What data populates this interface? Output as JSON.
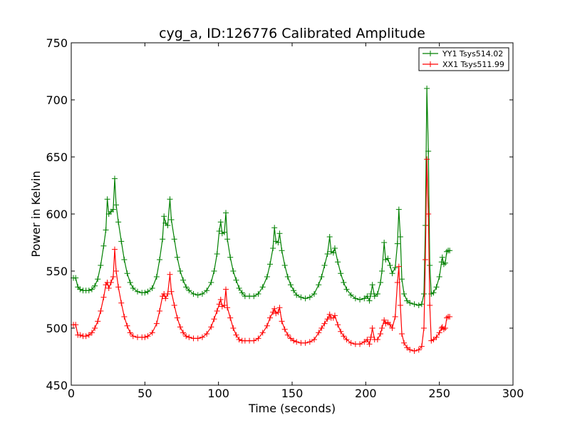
{
  "chart_data": {
    "type": "line",
    "title": "cyg_a, ID:126776 Calibrated Amplitude",
    "xlabel": "Time (seconds)",
    "ylabel": "Power in Kelvin",
    "xlim": [
      0,
      300
    ],
    "ylim": [
      450,
      750
    ],
    "xticks": [
      0,
      50,
      100,
      150,
      200,
      250,
      300
    ],
    "yticks": [
      450,
      500,
      550,
      600,
      650,
      700,
      750
    ],
    "grid": false,
    "legend_position": "top-right",
    "marker": "+",
    "series": [
      {
        "name": "YY1 Tsys514.02",
        "color": "#008000",
        "points": [
          [
            1.5,
            544
          ],
          [
            3.0,
            544
          ],
          [
            4.5,
            536
          ],
          [
            6.0,
            534
          ],
          [
            8.0,
            533
          ],
          [
            10.0,
            533
          ],
          [
            12.0,
            533
          ],
          [
            14.0,
            534
          ],
          [
            16.0,
            537
          ],
          [
            18.0,
            543
          ],
          [
            20.0,
            555
          ],
          [
            22.0,
            572
          ],
          [
            23.5,
            586
          ],
          [
            24.5,
            613
          ],
          [
            25.5,
            600
          ],
          [
            27.0,
            602
          ],
          [
            28.5,
            604
          ],
          [
            29.5,
            631
          ],
          [
            30.5,
            608
          ],
          [
            32.0,
            593
          ],
          [
            34.0,
            576
          ],
          [
            36.0,
            560
          ],
          [
            38.0,
            548
          ],
          [
            40.0,
            540
          ],
          [
            42.0,
            535
          ],
          [
            45.0,
            532
          ],
          [
            48.0,
            531
          ],
          [
            50.0,
            531
          ],
          [
            52.0,
            532
          ],
          [
            55.0,
            535
          ],
          [
            58.0,
            545
          ],
          [
            60.0,
            560
          ],
          [
            62.0,
            578
          ],
          [
            63.0,
            598
          ],
          [
            64.0,
            592
          ],
          [
            65.5,
            590
          ],
          [
            67.0,
            613
          ],
          [
            68.0,
            595
          ],
          [
            70.0,
            578
          ],
          [
            72.0,
            562
          ],
          [
            74.0,
            550
          ],
          [
            76.0,
            542
          ],
          [
            78.0,
            536
          ],
          [
            80.0,
            533
          ],
          [
            83.0,
            530
          ],
          [
            86.0,
            529
          ],
          [
            89.0,
            530
          ],
          [
            92.0,
            533
          ],
          [
            95.0,
            540
          ],
          [
            97.0,
            550
          ],
          [
            99.0,
            565
          ],
          [
            100.5,
            585
          ],
          [
            101.5,
            593
          ],
          [
            102.5,
            583
          ],
          [
            104.0,
            584
          ],
          [
            105.0,
            601
          ],
          [
            106.0,
            578
          ],
          [
            108.0,
            562
          ],
          [
            110.0,
            550
          ],
          [
            112.0,
            542
          ],
          [
            114.0,
            535
          ],
          [
            116.0,
            531
          ],
          [
            118.0,
            528
          ],
          [
            121.0,
            528
          ],
          [
            124.0,
            528
          ],
          [
            127.0,
            530
          ],
          [
            130.0,
            536
          ],
          [
            133.0,
            545
          ],
          [
            135.0,
            556
          ],
          [
            137.0,
            570
          ],
          [
            138.0,
            588
          ],
          [
            139.0,
            576
          ],
          [
            140.5,
            575
          ],
          [
            141.5,
            583
          ],
          [
            143.0,
            568
          ],
          [
            145.0,
            555
          ],
          [
            147.0,
            545
          ],
          [
            149.0,
            538
          ],
          [
            151.0,
            533
          ],
          [
            153.0,
            529
          ],
          [
            156.0,
            527
          ],
          [
            159.0,
            526
          ],
          [
            162.0,
            527
          ],
          [
            165.0,
            530
          ],
          [
            168.0,
            538
          ],
          [
            170.0,
            545
          ],
          [
            172.0,
            555
          ],
          [
            174.0,
            565
          ],
          [
            175.5,
            580
          ],
          [
            176.5,
            567
          ],
          [
            178.0,
            566
          ],
          [
            179.0,
            570
          ],
          [
            181.0,
            558
          ],
          [
            183.0,
            548
          ],
          [
            185.0,
            540
          ],
          [
            187.0,
            534
          ],
          [
            190.0,
            529
          ],
          [
            193.0,
            526
          ],
          [
            196.0,
            525
          ],
          [
            199.0,
            526
          ],
          [
            201.0,
            528
          ],
          [
            202.5,
            524
          ],
          [
            203.5,
            530
          ],
          [
            204.5,
            538
          ],
          [
            206.0,
            528
          ],
          [
            208.0,
            530
          ],
          [
            210.0,
            540
          ],
          [
            211.0,
            550
          ],
          [
            212.5,
            575
          ],
          [
            213.5,
            560
          ],
          [
            215.0,
            561
          ],
          [
            216.5,
            555
          ],
          [
            218.0,
            548
          ],
          [
            220.0,
            553
          ],
          [
            221.5,
            574
          ],
          [
            222.5,
            604
          ],
          [
            223.5,
            580
          ],
          [
            224.5,
            543
          ],
          [
            226.0,
            530
          ],
          [
            228.0,
            524
          ],
          [
            230.0,
            522
          ],
          [
            233.0,
            521
          ],
          [
            236.0,
            520
          ],
          [
            238.0,
            521
          ],
          [
            239.5,
            530
          ],
          [
            240.5,
            590
          ],
          [
            241.5,
            710
          ],
          [
            242.5,
            655
          ],
          [
            243.5,
            555
          ],
          [
            244.5,
            530
          ],
          [
            246.0,
            531
          ],
          [
            248.0,
            536
          ],
          [
            250.0,
            545
          ],
          [
            251.5,
            558
          ],
          [
            252.0,
            562
          ],
          [
            253.0,
            556
          ],
          [
            254.0,
            557
          ],
          [
            255.0,
            567
          ],
          [
            256.0,
            568
          ],
          [
            257.0,
            568
          ]
        ]
      },
      {
        "name": "XX1 Tsys511.99",
        "color": "#ff0000",
        "points": [
          [
            1.5,
            503
          ],
          [
            3.0,
            503
          ],
          [
            4.5,
            494
          ],
          [
            6.0,
            494
          ],
          [
            8.0,
            493
          ],
          [
            10.0,
            493
          ],
          [
            12.0,
            494
          ],
          [
            14.0,
            496
          ],
          [
            16.0,
            500
          ],
          [
            18.0,
            506
          ],
          [
            20.0,
            515
          ],
          [
            22.0,
            527
          ],
          [
            23.5,
            538
          ],
          [
            24.5,
            540
          ],
          [
            25.5,
            535
          ],
          [
            27.0,
            540
          ],
          [
            28.5,
            545
          ],
          [
            29.5,
            569
          ],
          [
            30.5,
            550
          ],
          [
            32.0,
            536
          ],
          [
            34.0,
            522
          ],
          [
            36.0,
            510
          ],
          [
            38.0,
            502
          ],
          [
            40.0,
            496
          ],
          [
            42.0,
            493
          ],
          [
            45.0,
            492
          ],
          [
            48.0,
            492
          ],
          [
            50.0,
            492
          ],
          [
            52.0,
            493
          ],
          [
            55.0,
            496
          ],
          [
            58.0,
            504
          ],
          [
            60.0,
            515
          ],
          [
            62.0,
            528
          ],
          [
            63.0,
            530
          ],
          [
            64.0,
            526
          ],
          [
            65.5,
            530
          ],
          [
            67.0,
            547
          ],
          [
            68.0,
            532
          ],
          [
            70.0,
            520
          ],
          [
            72.0,
            509
          ],
          [
            74.0,
            501
          ],
          [
            76.0,
            496
          ],
          [
            78.0,
            493
          ],
          [
            80.0,
            492
          ],
          [
            83.0,
            491
          ],
          [
            86.0,
            491
          ],
          [
            89.0,
            492
          ],
          [
            92.0,
            495
          ],
          [
            95.0,
            501
          ],
          [
            97.0,
            508
          ],
          [
            99.0,
            515
          ],
          [
            100.5,
            521
          ],
          [
            101.5,
            525
          ],
          [
            102.5,
            519
          ],
          [
            104.0,
            520
          ],
          [
            105.0,
            534
          ],
          [
            106.0,
            518
          ],
          [
            108.0,
            509
          ],
          [
            110.0,
            500
          ],
          [
            112.0,
            494
          ],
          [
            114.0,
            490
          ],
          [
            116.0,
            489
          ],
          [
            118.0,
            489
          ],
          [
            121.0,
            489
          ],
          [
            124.0,
            489
          ],
          [
            127.0,
            491
          ],
          [
            130.0,
            496
          ],
          [
            133.0,
            502
          ],
          [
            135.0,
            509
          ],
          [
            137.0,
            514
          ],
          [
            138.0,
            517
          ],
          [
            139.0,
            513
          ],
          [
            140.5,
            514
          ],
          [
            141.5,
            518
          ],
          [
            143.0,
            506
          ],
          [
            145.0,
            499
          ],
          [
            147.0,
            494
          ],
          [
            149.0,
            491
          ],
          [
            151.0,
            489
          ],
          [
            153.0,
            488
          ],
          [
            156.0,
            487
          ],
          [
            159.0,
            487
          ],
          [
            162.0,
            488
          ],
          [
            165.0,
            490
          ],
          [
            168.0,
            496
          ],
          [
            170.0,
            500
          ],
          [
            172.0,
            504
          ],
          [
            174.0,
            508
          ],
          [
            175.5,
            512
          ],
          [
            176.5,
            509
          ],
          [
            178.0,
            509
          ],
          [
            179.0,
            511
          ],
          [
            181.0,
            503
          ],
          [
            183.0,
            497
          ],
          [
            185.0,
            493
          ],
          [
            187.0,
            490
          ],
          [
            190.0,
            487
          ],
          [
            193.0,
            486
          ],
          [
            196.0,
            486
          ],
          [
            199.0,
            488
          ],
          [
            201.0,
            490
          ],
          [
            202.5,
            486
          ],
          [
            203.5,
            492
          ],
          [
            204.5,
            500
          ],
          [
            206.0,
            490
          ],
          [
            208.0,
            490
          ],
          [
            210.0,
            495
          ],
          [
            211.0,
            500
          ],
          [
            212.5,
            507
          ],
          [
            213.5,
            504
          ],
          [
            215.0,
            505
          ],
          [
            216.5,
            503
          ],
          [
            218.0,
            500
          ],
          [
            220.0,
            510
          ],
          [
            221.5,
            540
          ],
          [
            222.5,
            554
          ],
          [
            223.5,
            520
          ],
          [
            224.5,
            495
          ],
          [
            226.0,
            487
          ],
          [
            228.0,
            483
          ],
          [
            230.0,
            481
          ],
          [
            233.0,
            480
          ],
          [
            236.0,
            481
          ],
          [
            238.0,
            484
          ],
          [
            239.5,
            500
          ],
          [
            240.5,
            560
          ],
          [
            241.5,
            648
          ],
          [
            242.5,
            600
          ],
          [
            243.5,
            520
          ],
          [
            244.5,
            489
          ],
          [
            246.0,
            490
          ],
          [
            248.0,
            492
          ],
          [
            250.0,
            496
          ],
          [
            251.5,
            500
          ],
          [
            252.0,
            501
          ],
          [
            253.0,
            499
          ],
          [
            254.0,
            500
          ],
          [
            255.0,
            509
          ],
          [
            256.0,
            510
          ],
          [
            257.0,
            510
          ]
        ]
      }
    ]
  }
}
